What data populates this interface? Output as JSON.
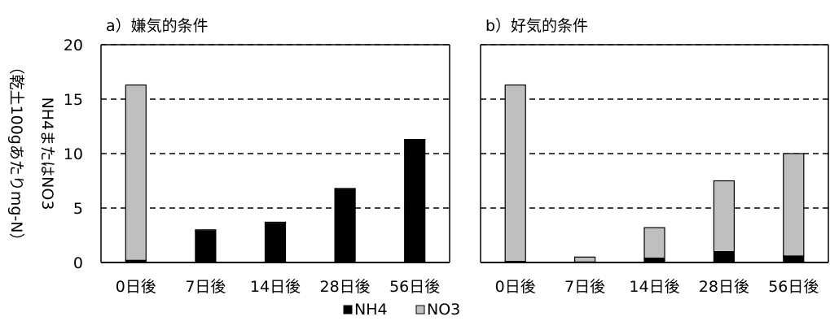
{
  "legend": [
    {
      "label": "NH4",
      "color": "#000000"
    },
    {
      "label": "NO3",
      "color": "#bfbfbf"
    }
  ],
  "ylabel": {
    "main": "NH4またはNO3",
    "unit": "（乾土100gあたりmg-N）"
  },
  "chart_data": [
    {
      "type": "bar",
      "stacked": true,
      "title": "a）嫌気的条件",
      "categories": [
        "0日後",
        "7日後",
        "14日後",
        "28日後",
        "56日後"
      ],
      "series": [
        {
          "name": "NH4",
          "color": "#000000",
          "values": [
            0.2,
            2.9,
            3.6,
            6.7,
            11.3
          ]
        },
        {
          "name": "NO3",
          "color": "#bfbfbf",
          "values": [
            16.1,
            0.1,
            0.1,
            0.1,
            0.0
          ]
        }
      ],
      "ylim": [
        0,
        20
      ],
      "yticks": [
        0,
        5,
        10,
        15,
        20
      ],
      "grid": "dashed"
    },
    {
      "type": "bar",
      "stacked": true,
      "title": "b）好気的条件",
      "categories": [
        "0日後",
        "7日後",
        "14日後",
        "28日後",
        "56日後"
      ],
      "series": [
        {
          "name": "NH4",
          "color": "#000000",
          "values": [
            0.1,
            0.05,
            0.4,
            1.0,
            0.6
          ]
        },
        {
          "name": "NO3",
          "color": "#bfbfbf",
          "values": [
            16.2,
            0.45,
            2.8,
            6.5,
            9.4
          ]
        }
      ],
      "ylim": [
        0,
        20
      ],
      "yticks": [
        0,
        5,
        10,
        15,
        20
      ],
      "grid": "dashed"
    }
  ]
}
